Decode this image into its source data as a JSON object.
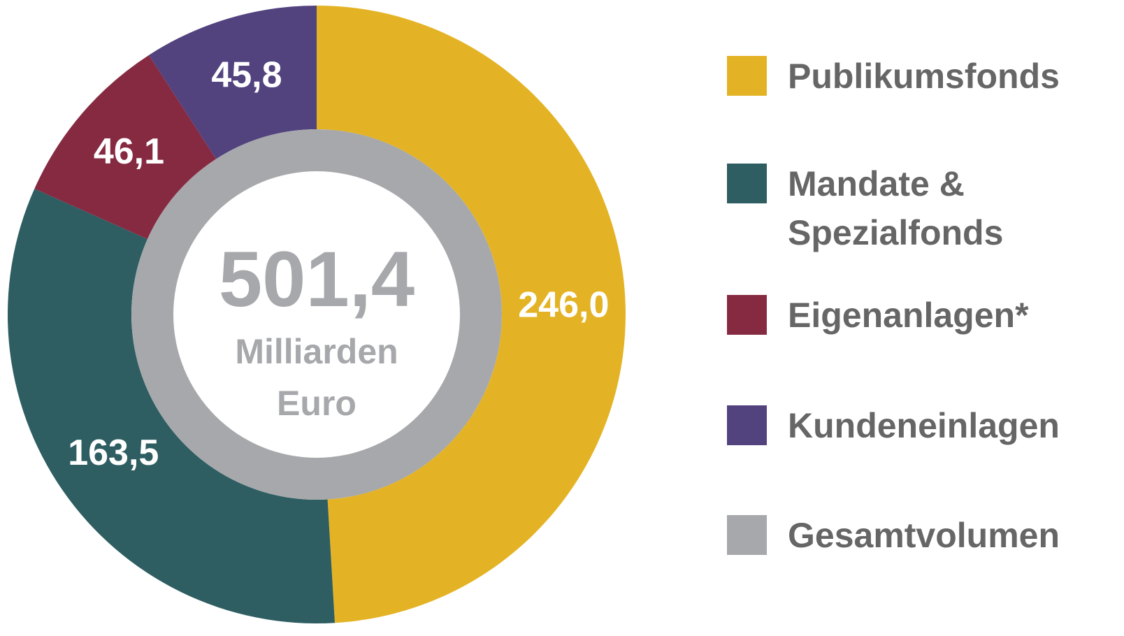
{
  "chart_data": {
    "type": "pie",
    "categories": [
      "Publikumsfonds",
      "Mandate & Spezialfonds",
      "Eigenanlagen*",
      "Kundeneinlagen"
    ],
    "values": [
      246.0,
      163.5,
      46.1,
      45.8
    ],
    "value_labels": [
      "246,0",
      "163,5",
      "46,1",
      "45,8"
    ],
    "colors": [
      "#e4b325",
      "#2e5e62",
      "#862a42",
      "#52437f"
    ],
    "total": {
      "name": "Gesamtvolumen",
      "value": 501.4,
      "label": "501,4",
      "color": "#a7a8ab"
    },
    "center_label": "Milliarden Euro",
    "legend": "right"
  }
}
